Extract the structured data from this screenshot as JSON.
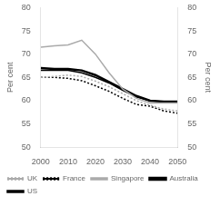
{
  "chart_data": {
    "type": "line",
    "y_label": "Per cent",
    "y2_label": "Per cent",
    "x": [
      2000,
      2005,
      2010,
      2015,
      2020,
      2025,
      2030,
      2035,
      2040,
      2045,
      2050
    ],
    "series": [
      {
        "name": "UK",
        "color": "#aaaaaa",
        "line_style": "dotted",
        "values": [
          65.0,
          65.2,
          65.5,
          65.2,
          64.2,
          63.0,
          61.5,
          60.0,
          59.0,
          58.2,
          57.8
        ]
      },
      {
        "name": "France",
        "color": "black",
        "line_style": "dotted",
        "values": [
          65.0,
          65.0,
          64.8,
          64.3,
          63.2,
          62.0,
          60.5,
          59.2,
          58.8,
          57.8,
          57.3
        ]
      },
      {
        "name": "Singapore",
        "color": "#aaaaaa",
        "line_style": "solid",
        "values": [
          71.5,
          71.8,
          72.0,
          73.0,
          70.0,
          66.0,
          62.5,
          60.5,
          59.5,
          59.5,
          59.5
        ]
      },
      {
        "name": "Australia",
        "color": "black",
        "line_style": "solid",
        "values": [
          67.0,
          66.8,
          66.8,
          66.5,
          65.5,
          64.0,
          62.5,
          61.0,
          60.0,
          59.8,
          59.8
        ]
      },
      {
        "name": "US",
        "color": "black",
        "line_style": "solid",
        "values": [
          66.5,
          66.5,
          66.5,
          66.0,
          65.0,
          63.8,
          62.2,
          60.8,
          60.0,
          59.8,
          59.8
        ]
      }
    ],
    "xlim": [
      2000,
      2050
    ],
    "xticks": [
      2000,
      2010,
      2020,
      2030,
      2040,
      2050
    ],
    "ylim": [
      50,
      80
    ],
    "yticks": [
      50,
      55,
      60,
      65,
      70,
      75,
      80
    ],
    "y2lim": [
      50,
      80
    ],
    "y2ticks": [
      50,
      55,
      60,
      65,
      70,
      75,
      80
    ],
    "grid": false,
    "legend": "lower left"
  }
}
